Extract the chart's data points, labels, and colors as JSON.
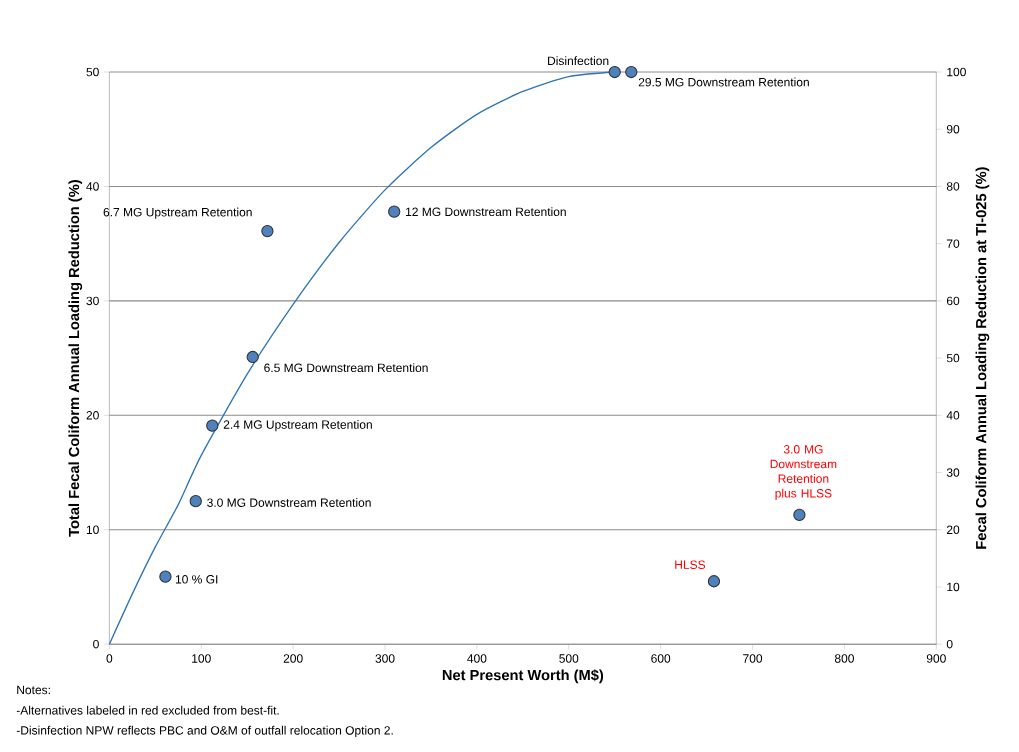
{
  "chart_data": {
    "type": "scatter",
    "xlabel": "Net Present Worth (M$)",
    "ylabel": "Total Fecal Coliform  Annual Loading Reduction (%)",
    "y2label": "Fecal Coliform Annual  Loading Reduction at TI-025 (%)",
    "xlim": [
      0,
      900
    ],
    "xticks": [
      0,
      100,
      200,
      300,
      400,
      500,
      600,
      700,
      800,
      900
    ],
    "ylim": [
      0,
      50
    ],
    "yticks": [
      0,
      10,
      20,
      30,
      40,
      50
    ],
    "y2lim": [
      0,
      100
    ],
    "y2ticks": [
      0,
      10,
      20,
      30,
      40,
      50,
      60,
      70,
      80,
      90,
      100
    ],
    "grid": "y",
    "series": [
      {
        "type": "line",
        "color": "#2e75b6",
        "marker": "none",
        "x": [
          0,
          25,
          50,
          75,
          100,
          150,
          200,
          250,
          300,
          350,
          400,
          450,
          500,
          550
        ],
        "values": [
          0,
          4.4,
          8.5,
          12.2,
          16.5,
          23.6,
          29.7,
          35.1,
          39.7,
          43.4,
          46.3,
          48.3,
          49.6,
          50
        ]
      },
      {
        "color": "#4f81bd",
        "marker": "circle",
        "x": [
          61,
          94,
          112,
          156,
          172,
          310,
          550,
          568,
          658,
          751
        ],
        "values": [
          5.9,
          12.5,
          19.1,
          25.1,
          36.1,
          37.8,
          50,
          50,
          5.5,
          11.3
        ]
      }
    ],
    "annotations": [
      {
        "text": "10 % GI",
        "x": 61,
        "y": 5.9
      },
      {
        "text": "3.0 MG Downstream Retention",
        "x": 94,
        "y": 12.5
      },
      {
        "text": "2.4 MG Upstream Retention",
        "x": 112,
        "y": 19.1
      },
      {
        "text": "6.5 MG Downstream Retention",
        "x": 156,
        "y": 25.1
      },
      {
        "text": "6.7 MG Upstream Retention",
        "x": 172,
        "y": 36.1
      },
      {
        "text": "12 MG Downstream Retention",
        "x": 310,
        "y": 37.8
      },
      {
        "text": "Disinfection",
        "x": 550,
        "y": 50
      },
      {
        "text": "29.5 MG Downstream Retention",
        "x": 568,
        "y": 50
      },
      {
        "text": "HLSS",
        "x": 658,
        "y": 5.5
      },
      {
        "text": "3.0 MG Downstream Retention plus HLSS",
        "x": 751,
        "y": 11.3
      },
      "Notes:",
      "-Alternatives labeled in red excluded from best-fit.",
      "-Disinfection  NPW reflects PBC and O&M of outfall relocation Option 2."
    ]
  }
}
